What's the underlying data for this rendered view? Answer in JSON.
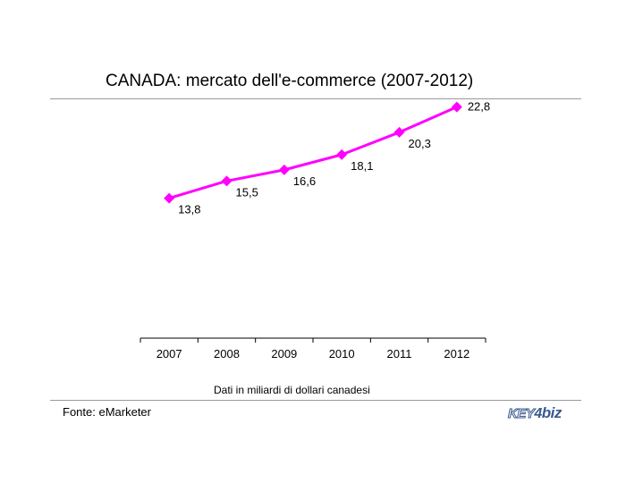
{
  "chart_data": {
    "type": "line",
    "title": "CANADA: mercato dell'e-commerce (2007-2012)",
    "categories": [
      "2007",
      "2008",
      "2009",
      "2010",
      "2011",
      "2012"
    ],
    "values": [
      13.8,
      15.5,
      16.6,
      18.1,
      20.3,
      22.8
    ],
    "data_labels": [
      "13,8",
      "15,5",
      "16,6",
      "18,1",
      "20,3",
      "22,8"
    ],
    "ylim": [
      0,
      30
    ],
    "grid": false,
    "legend": "none",
    "line_color": "#ff00ff",
    "marker": "diamond"
  },
  "note": "Dati in miliardi di dollari canadesi",
  "source": "Fonte: eMarketer",
  "logo": {
    "part1": "KEY",
    "part2": "4",
    "part3": "biz",
    "color": "#3a5a8c"
  }
}
